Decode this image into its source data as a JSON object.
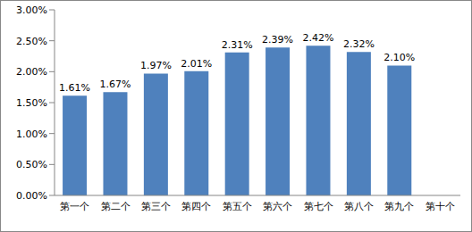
{
  "chart_data": {
    "type": "bar",
    "categories": [
      "第一个",
      "第二个",
      "第三个",
      "第四个",
      "第五个",
      "第六个",
      "第七个",
      "第八个",
      "第九个",
      "第十个"
    ],
    "values": [
      1.61,
      1.67,
      1.97,
      2.01,
      2.31,
      2.39,
      2.42,
      2.32,
      2.1,
      null
    ],
    "value_labels": [
      "1.61%",
      "1.67%",
      "1.97%",
      "2.01%",
      "2.31%",
      "2.39%",
      "2.42%",
      "2.32%",
      "2.10%",
      null
    ],
    "data_labels": true,
    "color": "#4f81bd",
    "ylim": [
      0,
      3
    ],
    "yticks": [
      {
        "value": 0,
        "label": "0.00%"
      },
      {
        "value": 0.5,
        "label": "0.50%"
      },
      {
        "value": 1,
        "label": "1.00%"
      },
      {
        "value": 1.5,
        "label": "1.50%"
      },
      {
        "value": 2,
        "label": "2.00%"
      },
      {
        "value": 2.5,
        "label": "2.50%"
      },
      {
        "value": 3,
        "label": "3.00%"
      }
    ],
    "grid": false
  }
}
